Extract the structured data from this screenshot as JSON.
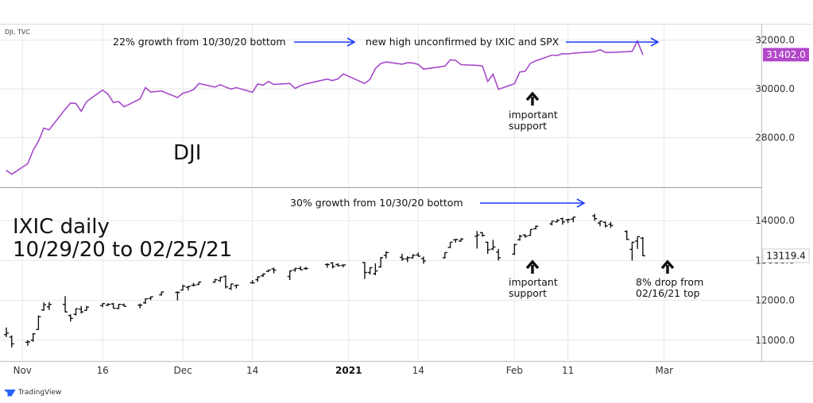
{
  "source_label": "DJI, TVC",
  "footer_brand": "TradingView",
  "colors": {
    "dji_line": "#a64ac9",
    "dji_tag": "#b247c9",
    "ixic_bars": "#111111",
    "arrow": "#1e3cff",
    "grid": "#e6e6e6"
  },
  "x_axis": {
    "ticks": [
      {
        "label": "Nov",
        "date": "2020-11-01",
        "bold": false
      },
      {
        "label": "16",
        "date": "2020-11-16",
        "bold": false
      },
      {
        "label": "Dec",
        "date": "2020-12-01",
        "bold": false
      },
      {
        "label": "14",
        "date": "2020-12-14",
        "bold": false
      },
      {
        "label": "2021",
        "date": "2021-01-01",
        "bold": true
      },
      {
        "label": "14",
        "date": "2021-01-14",
        "bold": false
      },
      {
        "label": "Feb",
        "date": "2021-02-01",
        "bold": false
      },
      {
        "label": "11",
        "date": "2021-02-11",
        "bold": false
      },
      {
        "label": "Mar",
        "date": "2021-03-01",
        "bold": false
      }
    ]
  },
  "chart_data": [
    {
      "type": "line",
      "series": [
        {
          "name": "DJI"
        }
      ],
      "title": "DJI",
      "ylim": [
        26000,
        32600
      ],
      "yticks": [
        28000,
        30000,
        32000
      ],
      "ytick_labels": [
        "28000.0",
        "30000.0",
        "32000.0"
      ],
      "last_value_label": "31402.0",
      "points": [
        [
          "2020-10-29",
          26660
        ],
        [
          "2020-10-30",
          26500
        ],
        [
          "2020-11-02",
          26930
        ],
        [
          "2020-11-03",
          27480
        ],
        [
          "2020-11-04",
          27850
        ],
        [
          "2020-11-05",
          28390
        ],
        [
          "2020-11-06",
          28320
        ],
        [
          "2020-11-09",
          29160
        ],
        [
          "2020-11-10",
          29420
        ],
        [
          "2020-11-11",
          29400
        ],
        [
          "2020-11-12",
          29080
        ],
        [
          "2020-11-13",
          29480
        ],
        [
          "2020-11-16",
          29950
        ],
        [
          "2020-11-17",
          29780
        ],
        [
          "2020-11-18",
          29440
        ],
        [
          "2020-11-19",
          29480
        ],
        [
          "2020-11-20",
          29260
        ],
        [
          "2020-11-23",
          29590
        ],
        [
          "2020-11-24",
          30050
        ],
        [
          "2020-11-25",
          29870
        ],
        [
          "2020-11-27",
          29910
        ],
        [
          "2020-11-30",
          29640
        ],
        [
          "2020-12-01",
          29820
        ],
        [
          "2020-12-02",
          29880
        ],
        [
          "2020-12-03",
          29970
        ],
        [
          "2020-12-04",
          30220
        ],
        [
          "2020-12-07",
          30070
        ],
        [
          "2020-12-08",
          30170
        ],
        [
          "2020-12-09",
          30070
        ],
        [
          "2020-12-10",
          29990
        ],
        [
          "2020-12-11",
          30050
        ],
        [
          "2020-12-14",
          29860
        ],
        [
          "2020-12-15",
          30200
        ],
        [
          "2020-12-16",
          30150
        ],
        [
          "2020-12-17",
          30300
        ],
        [
          "2020-12-18",
          30180
        ],
        [
          "2020-12-21",
          30220
        ],
        [
          "2020-12-22",
          30020
        ],
        [
          "2020-12-23",
          30130
        ],
        [
          "2020-12-24",
          30200
        ],
        [
          "2020-12-28",
          30400
        ],
        [
          "2020-12-29",
          30340
        ],
        [
          "2020-12-30",
          30410
        ],
        [
          "2020-12-31",
          30610
        ],
        [
          "2021-01-04",
          30220
        ],
        [
          "2021-01-05",
          30390
        ],
        [
          "2021-01-06",
          30830
        ],
        [
          "2021-01-07",
          31040
        ],
        [
          "2021-01-08",
          31100
        ],
        [
          "2021-01-11",
          31010
        ],
        [
          "2021-01-12",
          31070
        ],
        [
          "2021-01-13",
          31060
        ],
        [
          "2021-01-14",
          31000
        ],
        [
          "2021-01-15",
          30810
        ],
        [
          "2021-01-19",
          30930
        ],
        [
          "2021-01-20",
          31190
        ],
        [
          "2021-01-21",
          31170
        ],
        [
          "2021-01-22",
          30990
        ],
        [
          "2021-01-25",
          30960
        ],
        [
          "2021-01-26",
          30940
        ],
        [
          "2021-01-27",
          30300
        ],
        [
          "2021-01-28",
          30600
        ],
        [
          "2021-01-29",
          29980
        ],
        [
          "2021-02-01",
          30210
        ],
        [
          "2021-02-02",
          30690
        ],
        [
          "2021-02-03",
          30720
        ],
        [
          "2021-02-04",
          31050
        ],
        [
          "2021-02-05",
          31150
        ],
        [
          "2021-02-08",
          31380
        ],
        [
          "2021-02-09",
          31370
        ],
        [
          "2021-02-10",
          31440
        ],
        [
          "2021-02-11",
          31430
        ],
        [
          "2021-02-12",
          31460
        ],
        [
          "2021-02-16",
          31520
        ],
        [
          "2021-02-17",
          31610
        ],
        [
          "2021-02-18",
          31490
        ],
        [
          "2021-02-19",
          31490
        ],
        [
          "2021-02-22",
          31520
        ],
        [
          "2021-02-23",
          31540
        ],
        [
          "2021-02-24",
          31960
        ],
        [
          "2021-02-25",
          31400
        ]
      ],
      "annotations": [
        {
          "text": "22% growth from 10/30/20 bottom"
        },
        {
          "text": "new high unconfirmed by IXIC and SPX"
        },
        {
          "text": "important"
        },
        {
          "text": "support"
        }
      ]
    },
    {
      "type": "ohlc",
      "series": [
        {
          "name": "IXIC"
        }
      ],
      "title_lines": [
        "IXIC daily",
        "10/29/20 to 02/25/21"
      ],
      "ylim": [
        10500,
        14800
      ],
      "yticks": [
        11000,
        12000,
        13000,
        14000
      ],
      "ytick_labels": [
        "11000.0",
        "12000.0",
        "13000.0",
        "14000.0"
      ],
      "last_value_label": "13119.4",
      "bars": [
        {
          "d": "2020-10-29",
          "o": 11140,
          "h": 11320,
          "l": 11080,
          "c": 11180
        },
        {
          "d": "2020-10-30",
          "o": 11080,
          "h": 11120,
          "l": 10820,
          "c": 10910
        },
        {
          "d": "2020-11-02",
          "o": 10950,
          "h": 11000,
          "l": 10860,
          "c": 10960
        },
        {
          "d": "2020-11-03",
          "o": 11000,
          "h": 11180,
          "l": 10960,
          "c": 11160
        },
        {
          "d": "2020-11-04",
          "o": 11270,
          "h": 11620,
          "l": 11260,
          "c": 11590
        },
        {
          "d": "2020-11-05",
          "o": 11760,
          "h": 11950,
          "l": 11740,
          "c": 11890
        },
        {
          "d": "2020-11-06",
          "o": 11840,
          "h": 11960,
          "l": 11760,
          "c": 11900
        },
        {
          "d": "2020-11-09",
          "o": 11900,
          "h": 12110,
          "l": 11700,
          "c": 11710
        },
        {
          "d": "2020-11-10",
          "o": 11620,
          "h": 11650,
          "l": 11470,
          "c": 11550
        },
        {
          "d": "2020-11-11",
          "o": 11650,
          "h": 11800,
          "l": 11620,
          "c": 11790
        },
        {
          "d": "2020-11-12",
          "o": 11780,
          "h": 11860,
          "l": 11670,
          "c": 11710
        },
        {
          "d": "2020-11-13",
          "o": 11750,
          "h": 11860,
          "l": 11740,
          "c": 11830
        },
        {
          "d": "2020-11-16",
          "o": 11870,
          "h": 11930,
          "l": 11830,
          "c": 11920
        },
        {
          "d": "2020-11-17",
          "o": 11880,
          "h": 11930,
          "l": 11860,
          "c": 11900
        },
        {
          "d": "2020-11-18",
          "o": 11910,
          "h": 11940,
          "l": 11800,
          "c": 11800
        },
        {
          "d": "2020-11-19",
          "o": 11800,
          "h": 11910,
          "l": 11780,
          "c": 11900
        },
        {
          "d": "2020-11-20",
          "o": 11890,
          "h": 11920,
          "l": 11850,
          "c": 11850
        },
        {
          "d": "2020-11-23",
          "o": 11880,
          "h": 11920,
          "l": 11800,
          "c": 11880
        },
        {
          "d": "2020-11-24",
          "o": 11940,
          "h": 12050,
          "l": 11910,
          "c": 12040
        },
        {
          "d": "2020-11-25",
          "o": 12050,
          "h": 12100,
          "l": 12010,
          "c": 12090
        },
        {
          "d": "2020-11-27",
          "o": 12140,
          "h": 12220,
          "l": 12120,
          "c": 12210
        },
        {
          "d": "2020-11-30",
          "o": 12200,
          "h": 12230,
          "l": 12000,
          "c": 12200
        },
        {
          "d": "2020-12-01",
          "o": 12260,
          "h": 12390,
          "l": 12250,
          "c": 12360
        },
        {
          "d": "2020-12-02",
          "o": 12330,
          "h": 12360,
          "l": 12250,
          "c": 12350
        },
        {
          "d": "2020-12-03",
          "o": 12380,
          "h": 12440,
          "l": 12350,
          "c": 12380
        },
        {
          "d": "2020-12-04",
          "o": 12400,
          "h": 12470,
          "l": 12390,
          "c": 12460
        },
        {
          "d": "2020-12-07",
          "o": 12460,
          "h": 12540,
          "l": 12440,
          "c": 12520
        },
        {
          "d": "2020-12-08",
          "o": 12500,
          "h": 12590,
          "l": 12460,
          "c": 12580
        },
        {
          "d": "2020-12-09",
          "o": 12600,
          "h": 12630,
          "l": 12300,
          "c": 12340
        },
        {
          "d": "2020-12-10",
          "o": 12300,
          "h": 12420,
          "l": 12260,
          "c": 12410
        },
        {
          "d": "2020-12-11",
          "o": 12370,
          "h": 12400,
          "l": 12300,
          "c": 12380
        },
        {
          "d": "2020-12-14",
          "o": 12440,
          "h": 12510,
          "l": 12420,
          "c": 12440
        },
        {
          "d": "2020-12-15",
          "o": 12520,
          "h": 12600,
          "l": 12470,
          "c": 12590
        },
        {
          "d": "2020-12-16",
          "o": 12620,
          "h": 12680,
          "l": 12590,
          "c": 12660
        },
        {
          "d": "2020-12-17",
          "o": 12730,
          "h": 12770,
          "l": 12710,
          "c": 12760
        },
        {
          "d": "2020-12-18",
          "o": 12790,
          "h": 12820,
          "l": 12680,
          "c": 12760
        },
        {
          "d": "2020-12-21",
          "o": 12600,
          "h": 12750,
          "l": 12510,
          "c": 12740
        },
        {
          "d": "2020-12-22",
          "o": 12760,
          "h": 12820,
          "l": 12720,
          "c": 12800
        },
        {
          "d": "2020-12-23",
          "o": 12800,
          "h": 12860,
          "l": 12760,
          "c": 12770
        },
        {
          "d": "2020-12-24",
          "o": 12800,
          "h": 12840,
          "l": 12770,
          "c": 12800
        },
        {
          "d": "2020-12-28",
          "o": 12900,
          "h": 12930,
          "l": 12820,
          "c": 12900
        },
        {
          "d": "2020-12-29",
          "o": 12940,
          "h": 12960,
          "l": 12800,
          "c": 12850
        },
        {
          "d": "2020-12-30",
          "o": 12900,
          "h": 12930,
          "l": 12850,
          "c": 12870
        },
        {
          "d": "2020-12-31",
          "o": 12880,
          "h": 12900,
          "l": 12830,
          "c": 12890
        },
        {
          "d": "2021-01-04",
          "o": 12950,
          "h": 12960,
          "l": 12540,
          "c": 12700
        },
        {
          "d": "2021-01-05",
          "o": 12700,
          "h": 12830,
          "l": 12650,
          "c": 12820
        },
        {
          "d": "2021-01-06",
          "o": 12670,
          "h": 12930,
          "l": 12630,
          "c": 12740
        },
        {
          "d": "2021-01-07",
          "o": 12840,
          "h": 13090,
          "l": 12820,
          "c": 13070
        },
        {
          "d": "2021-01-08",
          "o": 13130,
          "h": 13230,
          "l": 13050,
          "c": 13200
        },
        {
          "d": "2021-01-11",
          "o": 13080,
          "h": 13170,
          "l": 12990,
          "c": 13040
        },
        {
          "d": "2021-01-12",
          "o": 13040,
          "h": 13110,
          "l": 12960,
          "c": 13070
        },
        {
          "d": "2021-01-13",
          "o": 13070,
          "h": 13160,
          "l": 13050,
          "c": 13130
        },
        {
          "d": "2021-01-14",
          "o": 13140,
          "h": 13200,
          "l": 13100,
          "c": 13110
        },
        {
          "d": "2021-01-15",
          "o": 13050,
          "h": 13100,
          "l": 12920,
          "c": 12990
        },
        {
          "d": "2021-01-19",
          "o": 13070,
          "h": 13200,
          "l": 13050,
          "c": 13200
        },
        {
          "d": "2021-01-20",
          "o": 13330,
          "h": 13460,
          "l": 13310,
          "c": 13460
        },
        {
          "d": "2021-01-21",
          "o": 13520,
          "h": 13540,
          "l": 13450,
          "c": 13530
        },
        {
          "d": "2021-01-22",
          "o": 13490,
          "h": 13560,
          "l": 13470,
          "c": 13540
        },
        {
          "d": "2021-01-25",
          "o": 13610,
          "h": 13740,
          "l": 13300,
          "c": 13640
        },
        {
          "d": "2021-01-26",
          "o": 13700,
          "h": 13710,
          "l": 13600,
          "c": 13630
        },
        {
          "d": "2021-01-27",
          "o": 13460,
          "h": 13470,
          "l": 13170,
          "c": 13270
        },
        {
          "d": "2021-01-28",
          "o": 13290,
          "h": 13520,
          "l": 13260,
          "c": 13340
        },
        {
          "d": "2021-01-29",
          "o": 13210,
          "h": 13290,
          "l": 13000,
          "c": 13070
        },
        {
          "d": "2021-02-01",
          "o": 13160,
          "h": 13420,
          "l": 13140,
          "c": 13400
        },
        {
          "d": "2021-02-02",
          "o": 13520,
          "h": 13650,
          "l": 13500,
          "c": 13610
        },
        {
          "d": "2021-02-03",
          "o": 13640,
          "h": 13660,
          "l": 13570,
          "c": 13610
        },
        {
          "d": "2021-02-04",
          "o": 13630,
          "h": 13780,
          "l": 13620,
          "c": 13780
        },
        {
          "d": "2021-02-05",
          "o": 13800,
          "h": 13880,
          "l": 13780,
          "c": 13860
        },
        {
          "d": "2021-02-08",
          "o": 13920,
          "h": 13990,
          "l": 13880,
          "c": 13990
        },
        {
          "d": "2021-02-09",
          "o": 13970,
          "h": 14040,
          "l": 13960,
          "c": 14010
        },
        {
          "d": "2021-02-10",
          "o": 14050,
          "h": 14080,
          "l": 13900,
          "c": 13970
        },
        {
          "d": "2021-02-11",
          "o": 14020,
          "h": 14050,
          "l": 13940,
          "c": 14030
        },
        {
          "d": "2021-02-12",
          "o": 14040,
          "h": 14100,
          "l": 13960,
          "c": 14090
        },
        {
          "d": "2021-02-16",
          "o": 14120,
          "h": 14170,
          "l": 14000,
          "c": 14050
        },
        {
          "d": "2021-02-17",
          "o": 13940,
          "h": 14000,
          "l": 13860,
          "c": 13990
        },
        {
          "d": "2021-02-18",
          "o": 13960,
          "h": 13980,
          "l": 13830,
          "c": 13870
        },
        {
          "d": "2021-02-19",
          "o": 13910,
          "h": 13970,
          "l": 13820,
          "c": 13880
        },
        {
          "d": "2021-02-22",
          "o": 13730,
          "h": 13760,
          "l": 13520,
          "c": 13530
        },
        {
          "d": "2021-02-23",
          "o": 13280,
          "h": 13470,
          "l": 13000,
          "c": 13460
        },
        {
          "d": "2021-02-24",
          "o": 13490,
          "h": 13600,
          "l": 13290,
          "c": 13600
        },
        {
          "d": "2021-02-25",
          "o": 13560,
          "h": 13590,
          "l": 13110,
          "c": 13120
        }
      ],
      "annotations": [
        {
          "text": "30% growth from 10/30/20 bottom"
        },
        {
          "text": "important"
        },
        {
          "text": "support"
        },
        {
          "text": "8% drop from"
        },
        {
          "text": "02/16/21 top"
        }
      ]
    }
  ]
}
